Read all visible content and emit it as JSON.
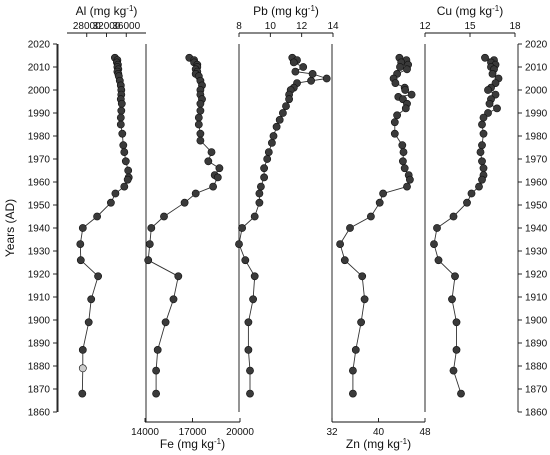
{
  "chart_data": {
    "type": "scatter",
    "y_axis": {
      "label": "Years (AD)",
      "ylim": [
        1860,
        2020
      ],
      "ticks": [
        1860,
        1870,
        1880,
        1890,
        1900,
        1910,
        1920,
        1930,
        1940,
        1950,
        1960,
        1970,
        1980,
        1990,
        2000,
        2010,
        2020
      ]
    },
    "panels": [
      {
        "id": "al",
        "label": "Al (mg kg",
        "sup": "-1",
        "label_end": ")",
        "axis_position": "top",
        "xlim": [
          24000,
          40000
        ],
        "ticks": [
          28000,
          32000,
          36000
        ],
        "tick_labels": [
          "28000",
          "32000",
          "36000"
        ],
        "point_color": "#3a3a3a",
        "open_point_color": "#cccccc",
        "points": [
          {
            "v": 33700,
            "y": 2014
          },
          {
            "v": 34200,
            "y": 2013
          },
          {
            "v": 34100,
            "y": 2012
          },
          {
            "v": 34300,
            "y": 2011
          },
          {
            "v": 34200,
            "y": 2010
          },
          {
            "v": 34400,
            "y": 2009
          },
          {
            "v": 34200,
            "y": 2008
          },
          {
            "v": 34400,
            "y": 2007
          },
          {
            "v": 34500,
            "y": 2006
          },
          {
            "v": 34700,
            "y": 2004
          },
          {
            "v": 34900,
            "y": 2002
          },
          {
            "v": 35000,
            "y": 2000
          },
          {
            "v": 35000,
            "y": 1998
          },
          {
            "v": 34900,
            "y": 1996
          },
          {
            "v": 35100,
            "y": 1994
          },
          {
            "v": 35000,
            "y": 1991
          },
          {
            "v": 34900,
            "y": 1988
          },
          {
            "v": 34900,
            "y": 1985
          },
          {
            "v": 35200,
            "y": 1981
          },
          {
            "v": 35400,
            "y": 1976
          },
          {
            "v": 35600,
            "y": 1973
          },
          {
            "v": 35900,
            "y": 1969
          },
          {
            "v": 36400,
            "y": 1965
          },
          {
            "v": 36500,
            "y": 1962
          },
          {
            "v": 36300,
            "y": 1961
          },
          {
            "v": 35600,
            "y": 1958
          },
          {
            "v": 33800,
            "y": 1955
          },
          {
            "v": 32900,
            "y": 1951
          },
          {
            "v": 30100,
            "y": 1945
          },
          {
            "v": 27200,
            "y": 1940
          },
          {
            "v": 26700,
            "y": 1933
          },
          {
            "v": 26800,
            "y": 1926
          },
          {
            "v": 30300,
            "y": 1919
          },
          {
            "v": 28900,
            "y": 1909
          },
          {
            "v": 28400,
            "y": 1899
          },
          {
            "v": 27200,
            "y": 1887
          },
          {
            "v": 27200,
            "y": 1879,
            "open": true
          },
          {
            "v": 27100,
            "y": 1868
          }
        ]
      },
      {
        "id": "fe",
        "label": "Fe (mg kg",
        "sup": "-1",
        "label_end": ")",
        "axis_position": "bottom",
        "xlim": [
          14000,
          20000
        ],
        "ticks": [
          14000,
          17000,
          20000
        ],
        "tick_labels": [
          "14000",
          "17000",
          "20000"
        ],
        "point_color": "#3a3a3a",
        "points": [
          {
            "v": 16800,
            "y": 2014
          },
          {
            "v": 17100,
            "y": 2013
          },
          {
            "v": 17100,
            "y": 2012
          },
          {
            "v": 17300,
            "y": 2011
          },
          {
            "v": 17300,
            "y": 2010
          },
          {
            "v": 17200,
            "y": 2009
          },
          {
            "v": 17300,
            "y": 2008
          },
          {
            "v": 17200,
            "y": 2007
          },
          {
            "v": 17400,
            "y": 2006
          },
          {
            "v": 17500,
            "y": 2004
          },
          {
            "v": 17600,
            "y": 2002
          },
          {
            "v": 17500,
            "y": 2000
          },
          {
            "v": 17500,
            "y": 1998
          },
          {
            "v": 17600,
            "y": 1996
          },
          {
            "v": 17500,
            "y": 1994
          },
          {
            "v": 17500,
            "y": 1991
          },
          {
            "v": 17400,
            "y": 1988
          },
          {
            "v": 17400,
            "y": 1985
          },
          {
            "v": 17500,
            "y": 1981
          },
          {
            "v": 17500,
            "y": 1978
          },
          {
            "v": 18200,
            "y": 1973
          },
          {
            "v": 18000,
            "y": 1969
          },
          {
            "v": 18700,
            "y": 1966
          },
          {
            "v": 18400,
            "y": 1963
          },
          {
            "v": 18600,
            "y": 1962
          },
          {
            "v": 18300,
            "y": 1958
          },
          {
            "v": 17200,
            "y": 1955
          },
          {
            "v": 16500,
            "y": 1951
          },
          {
            "v": 15200,
            "y": 1945
          },
          {
            "v": 14400,
            "y": 1940
          },
          {
            "v": 14300,
            "y": 1933
          },
          {
            "v": 14200,
            "y": 1926
          },
          {
            "v": 16100,
            "y": 1919
          },
          {
            "v": 15800,
            "y": 1909
          },
          {
            "v": 15300,
            "y": 1899
          },
          {
            "v": 14800,
            "y": 1887
          },
          {
            "v": 14700,
            "y": 1878
          },
          {
            "v": 14700,
            "y": 1868
          }
        ]
      },
      {
        "id": "pb",
        "label": "Pb (mg kg",
        "sup": "-1",
        "label_end": ")",
        "axis_position": "top",
        "xlim": [
          8,
          14
        ],
        "ticks": [
          8,
          10,
          12,
          14
        ],
        "tick_labels": [
          "8",
          "10",
          "12",
          "14"
        ],
        "point_color": "#3a3a3a",
        "points": [
          {
            "v": 11.4,
            "y": 2014
          },
          {
            "v": 11.7,
            "y": 2013
          },
          {
            "v": 11.5,
            "y": 2012
          },
          {
            "v": 12.1,
            "y": 2010
          },
          {
            "v": 11.6,
            "y": 2008
          },
          {
            "v": 12.7,
            "y": 2007
          },
          {
            "v": 13.6,
            "y": 2005
          },
          {
            "v": 12.6,
            "y": 2004
          },
          {
            "v": 11.7,
            "y": 2003
          },
          {
            "v": 11.5,
            "y": 2001
          },
          {
            "v": 11.3,
            "y": 2000
          },
          {
            "v": 11.2,
            "y": 1998
          },
          {
            "v": 11.2,
            "y": 1996
          },
          {
            "v": 11.0,
            "y": 1993
          },
          {
            "v": 10.8,
            "y": 1990
          },
          {
            "v": 10.6,
            "y": 1987
          },
          {
            "v": 10.4,
            "y": 1984
          },
          {
            "v": 10.2,
            "y": 1980
          },
          {
            "v": 10.1,
            "y": 1977
          },
          {
            "v": 9.9,
            "y": 1973
          },
          {
            "v": 9.8,
            "y": 1970
          },
          {
            "v": 9.6,
            "y": 1966
          },
          {
            "v": 9.6,
            "y": 1962
          },
          {
            "v": 9.4,
            "y": 1958
          },
          {
            "v": 9.3,
            "y": 1955
          },
          {
            "v": 9.3,
            "y": 1951
          },
          {
            "v": 9.0,
            "y": 1945
          },
          {
            "v": 8.2,
            "y": 1940
          },
          {
            "v": 8.0,
            "y": 1933
          },
          {
            "v": 8.4,
            "y": 1926
          },
          {
            "v": 9.0,
            "y": 1919
          },
          {
            "v": 8.9,
            "y": 1909
          },
          {
            "v": 8.6,
            "y": 1899
          },
          {
            "v": 8.6,
            "y": 1887
          },
          {
            "v": 8.7,
            "y": 1878
          },
          {
            "v": 8.7,
            "y": 1868
          }
        ]
      },
      {
        "id": "zn",
        "label": "Zn (mg kg",
        "sup": "-1",
        "label_end": ")",
        "axis_position": "bottom",
        "xlim": [
          32,
          48
        ],
        "ticks": [
          32,
          40,
          48
        ],
        "tick_labels": [
          "32",
          "40",
          "48"
        ],
        "point_color": "#3a3a3a",
        "points": [
          {
            "v": 43.6,
            "y": 2014
          },
          {
            "v": 44.8,
            "y": 2013
          },
          {
            "v": 43.9,
            "y": 2012
          },
          {
            "v": 45.1,
            "y": 2011
          },
          {
            "v": 43.7,
            "y": 2010
          },
          {
            "v": 44.9,
            "y": 2009
          },
          {
            "v": 43.2,
            "y": 2007
          },
          {
            "v": 42.6,
            "y": 2005
          },
          {
            "v": 42.9,
            "y": 2003
          },
          {
            "v": 44.5,
            "y": 2001
          },
          {
            "v": 44.6,
            "y": 2000
          },
          {
            "v": 45.7,
            "y": 1998
          },
          {
            "v": 43.4,
            "y": 1997
          },
          {
            "v": 44.2,
            "y": 1996
          },
          {
            "v": 44.9,
            "y": 1994
          },
          {
            "v": 44.7,
            "y": 1992
          },
          {
            "v": 43.2,
            "y": 1989
          },
          {
            "v": 42.8,
            "y": 1986
          },
          {
            "v": 42.8,
            "y": 1981
          },
          {
            "v": 44.1,
            "y": 1976
          },
          {
            "v": 44.3,
            "y": 1973
          },
          {
            "v": 44.2,
            "y": 1969
          },
          {
            "v": 44.5,
            "y": 1966
          },
          {
            "v": 45.2,
            "y": 1963
          },
          {
            "v": 45.4,
            "y": 1961
          },
          {
            "v": 44.9,
            "y": 1958
          },
          {
            "v": 40.8,
            "y": 1955
          },
          {
            "v": 40.2,
            "y": 1951
          },
          {
            "v": 38.7,
            "y": 1945
          },
          {
            "v": 35.1,
            "y": 1940
          },
          {
            "v": 33.4,
            "y": 1933
          },
          {
            "v": 34.2,
            "y": 1926
          },
          {
            "v": 37.2,
            "y": 1919
          },
          {
            "v": 37.6,
            "y": 1909
          },
          {
            "v": 37.0,
            "y": 1899
          },
          {
            "v": 36.1,
            "y": 1887
          },
          {
            "v": 35.6,
            "y": 1878
          },
          {
            "v": 35.6,
            "y": 1868
          }
        ]
      },
      {
        "id": "cu",
        "label": "Cu (mg kg",
        "sup": "-1",
        "label_end": ")",
        "axis_position": "top",
        "xlim": [
          12,
          18
        ],
        "ticks": [
          12,
          15,
          18
        ],
        "tick_labels": [
          "12",
          "15",
          "18"
        ],
        "point_color": "#3a3a3a",
        "points": [
          {
            "v": 16.0,
            "y": 2014
          },
          {
            "v": 16.6,
            "y": 2013
          },
          {
            "v": 16.4,
            "y": 2012
          },
          {
            "v": 16.7,
            "y": 2011
          },
          {
            "v": 16.4,
            "y": 2010
          },
          {
            "v": 16.6,
            "y": 2009
          },
          {
            "v": 16.5,
            "y": 2007
          },
          {
            "v": 16.9,
            "y": 2005
          },
          {
            "v": 16.7,
            "y": 2003
          },
          {
            "v": 16.4,
            "y": 2001
          },
          {
            "v": 16.2,
            "y": 2000
          },
          {
            "v": 16.7,
            "y": 1998
          },
          {
            "v": 16.4,
            "y": 1996
          },
          {
            "v": 16.3,
            "y": 1994
          },
          {
            "v": 16.8,
            "y": 1992
          },
          {
            "v": 16.2,
            "y": 1990
          },
          {
            "v": 15.9,
            "y": 1988
          },
          {
            "v": 15.8,
            "y": 1985
          },
          {
            "v": 15.9,
            "y": 1981
          },
          {
            "v": 15.8,
            "y": 1976
          },
          {
            "v": 15.7,
            "y": 1973
          },
          {
            "v": 15.8,
            "y": 1969
          },
          {
            "v": 15.9,
            "y": 1966
          },
          {
            "v": 15.9,
            "y": 1963
          },
          {
            "v": 15.8,
            "y": 1961
          },
          {
            "v": 15.6,
            "y": 1958
          },
          {
            "v": 15.1,
            "y": 1955
          },
          {
            "v": 14.8,
            "y": 1951
          },
          {
            "v": 13.9,
            "y": 1945
          },
          {
            "v": 12.8,
            "y": 1940
          },
          {
            "v": 12.6,
            "y": 1933
          },
          {
            "v": 12.9,
            "y": 1926
          },
          {
            "v": 14.0,
            "y": 1919
          },
          {
            "v": 13.8,
            "y": 1909
          },
          {
            "v": 14.1,
            "y": 1899
          },
          {
            "v": 14.1,
            "y": 1887
          },
          {
            "v": 13.9,
            "y": 1878
          },
          {
            "v": 14.4,
            "y": 1868
          }
        ]
      }
    ]
  }
}
